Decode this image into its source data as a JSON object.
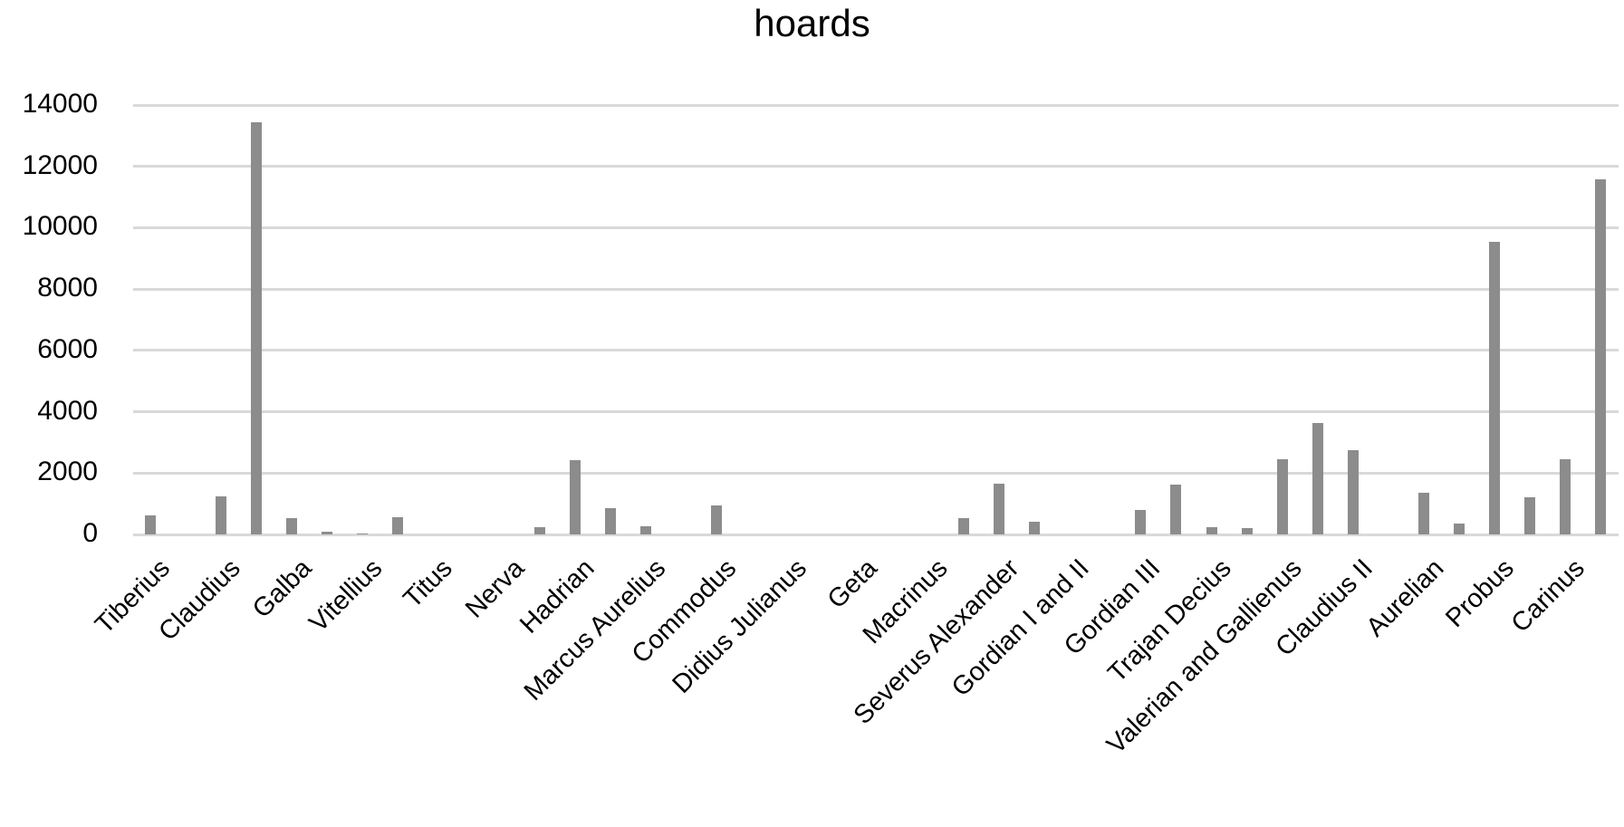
{
  "chart_data": {
    "type": "bar",
    "title": "hoards",
    "xlabel": "",
    "ylabel": "",
    "ylim": [
      0,
      14000
    ],
    "yticks": [
      0,
      2000,
      4000,
      6000,
      8000,
      10000,
      12000,
      14000
    ],
    "grid": true,
    "legend": null,
    "bar_color": "#8c8c8c",
    "grid_color": "#d9d9d9",
    "categories": [
      "Tiberius",
      "",
      "Claudius",
      "",
      "Galba",
      "",
      "Vitellius",
      "",
      "Titus",
      "",
      "Nerva",
      "",
      "Hadrian",
      "",
      "Marcus Aurelius",
      "",
      "Commodus",
      "",
      "Didius Julianus",
      "",
      "Geta",
      "",
      "Macrinus",
      "",
      "Severus Alexander",
      "",
      "Gordian I and II",
      "",
      "Gordian III",
      "",
      "Trajan Decius",
      "",
      "Valerian and Gallienus",
      "",
      "Claudius II",
      "",
      "Aurelian",
      "",
      "Probus",
      "",
      "Carinus",
      ""
    ],
    "values": [
      610,
      0,
      1240,
      13440,
      530,
      100,
      40,
      560,
      0,
      0,
      0,
      250,
      2420,
      860,
      280,
      0,
      940,
      0,
      0,
      0,
      0,
      0,
      0,
      525,
      1640,
      400,
      0,
      0,
      800,
      1620,
      250,
      200,
      2440,
      3630,
      2740,
      0,
      1365,
      350,
      9530,
      1215,
      2455,
      11570
    ]
  }
}
